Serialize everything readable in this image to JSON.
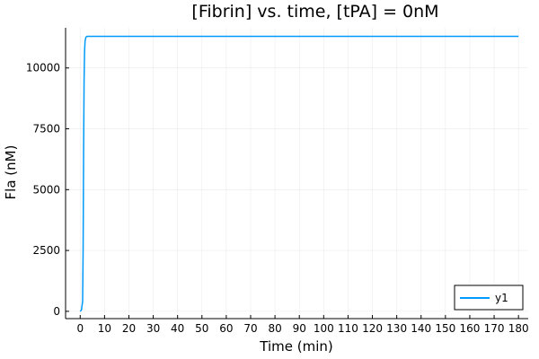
{
  "chart_data": {
    "type": "line",
    "title": "[Fibrin] vs. time, [tPA] = 0nM",
    "xlabel": "Time (min)",
    "ylabel": "Fla (nM)",
    "xlim": [
      -6,
      184
    ],
    "ylim": [
      -300,
      11650
    ],
    "xticks": [
      0,
      10,
      20,
      30,
      40,
      50,
      60,
      70,
      80,
      90,
      100,
      110,
      120,
      130,
      140,
      150,
      160,
      170,
      180
    ],
    "yticks": [
      0,
      2500,
      5000,
      7500,
      10000
    ],
    "grid": true,
    "legend_position": "bottom-right",
    "series": [
      {
        "name": "y1",
        "color": "#009AFA",
        "x": [
          0,
          0.5,
          1.0,
          1.2,
          1.4,
          1.6,
          1.8,
          2.0,
          2.3,
          2.6,
          3.0,
          4.0,
          6.0,
          10,
          20,
          40,
          60,
          80,
          100,
          120,
          140,
          160,
          180
        ],
        "y": [
          0,
          50,
          400,
          2500,
          6500,
          9500,
          10700,
          11100,
          11250,
          11290,
          11300,
          11300,
          11300,
          11300,
          11300,
          11300,
          11300,
          11300,
          11300,
          11300,
          11300,
          11300,
          11300
        ]
      }
    ]
  }
}
